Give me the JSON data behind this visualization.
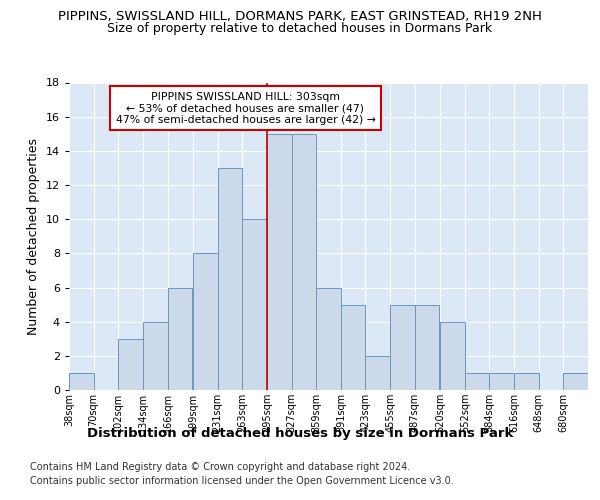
{
  "title1": "PIPPINS, SWISSLAND HILL, DORMANS PARK, EAST GRINSTEAD, RH19 2NH",
  "title2": "Size of property relative to detached houses in Dormans Park",
  "xlabel": "Distribution of detached houses by size in Dormans Park",
  "ylabel": "Number of detached properties",
  "bin_labels": [
    "38sqm",
    "70sqm",
    "102sqm",
    "134sqm",
    "166sqm",
    "199sqm",
    "231sqm",
    "263sqm",
    "295sqm",
    "327sqm",
    "359sqm",
    "391sqm",
    "423sqm",
    "455sqm",
    "487sqm",
    "520sqm",
    "552sqm",
    "584sqm",
    "616sqm",
    "648sqm",
    "680sqm"
  ],
  "bin_left_edges": [
    38,
    70,
    102,
    134,
    166,
    199,
    231,
    263,
    295,
    327,
    359,
    391,
    423,
    455,
    487,
    520,
    552,
    584,
    616,
    648,
    680
  ],
  "bar_heights": [
    1,
    0,
    3,
    4,
    6,
    8,
    13,
    10,
    15,
    15,
    6,
    5,
    2,
    5,
    5,
    4,
    1,
    1,
    1,
    0,
    1
  ],
  "bar_color": "#ccd9ea",
  "bar_edge_color": "#6a96c0",
  "red_line_x": 295,
  "annotation_title": "PIPPINS SWISSLAND HILL: 303sqm",
  "annotation_line2": "← 53% of detached houses are smaller (47)",
  "annotation_line3": "47% of semi-detached houses are larger (42) →",
  "ylim": [
    0,
    18
  ],
  "yticks": [
    0,
    2,
    4,
    6,
    8,
    10,
    12,
    14,
    16,
    18
  ],
  "footnote1": "Contains HM Land Registry data © Crown copyright and database right 2024.",
  "footnote2": "Contains public sector information licensed under the Open Government Licence v3.0.",
  "background_color": "#dce8f5",
  "grid_color": "#ffffff"
}
